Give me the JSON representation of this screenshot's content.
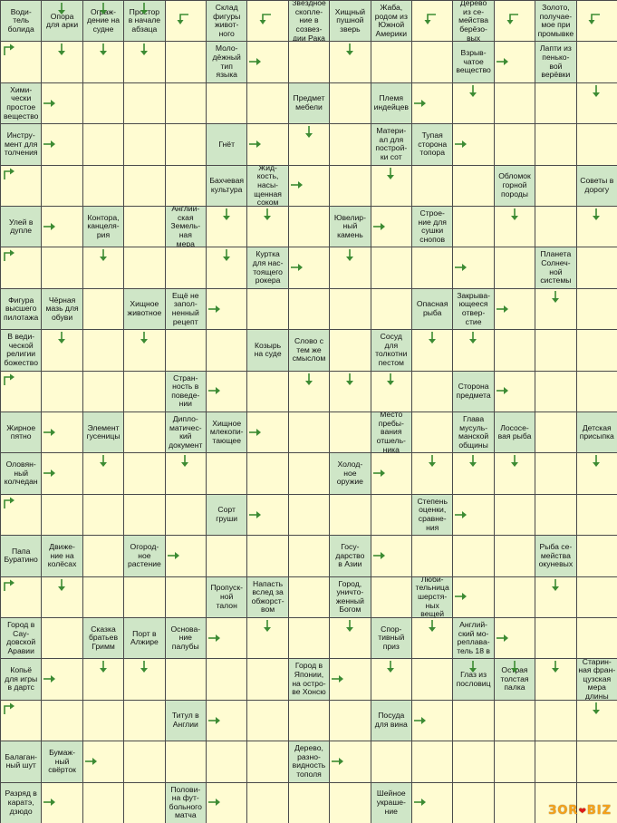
{
  "colors": {
    "clue_bg": "#cfe6c7",
    "blank_bg": "#fffcd2",
    "grid_line": "#4a4a4a",
    "arrow": "#3c8b33"
  },
  "grid": {
    "cols": 15,
    "rows": 20
  },
  "clues": [
    {
      "r": 0,
      "c": 0,
      "text": "Води-\nтель\nболида"
    },
    {
      "r": 0,
      "c": 1,
      "text": "Опора\nдля арки"
    },
    {
      "r": 0,
      "c": 2,
      "text": "Ограж-\nдение на\nсудне"
    },
    {
      "r": 0,
      "c": 3,
      "text": "Простор\nв начале\nабзаца"
    },
    {
      "r": 0,
      "c": 5,
      "text": "Склад\nфигуры\nживот-\nного"
    },
    {
      "r": 0,
      "c": 7,
      "text": "Звёздное\nскопле-\nние в\nсозвез-\nдии Рака"
    },
    {
      "r": 0,
      "c": 8,
      "text": "Хищный\nпушной\nзверь"
    },
    {
      "r": 0,
      "c": 9,
      "text": "Жаба,\nродом из\nЮжной\nАмерики"
    },
    {
      "r": 0,
      "c": 11,
      "text": "Дерево\nиз се-\nмейства\nберёзо-\nвых"
    },
    {
      "r": 0,
      "c": 13,
      "text": "Золото,\nполучае-\nмое при\nпромывке"
    },
    {
      "r": 1,
      "c": 5,
      "text": "Моло-\nдёжный\nтип\nязыка"
    },
    {
      "r": 1,
      "c": 11,
      "text": "Взрыв-\nчатое\nвещество"
    },
    {
      "r": 1,
      "c": 13,
      "text": "Лапти из\nпенько-\nвой\nверёвки"
    },
    {
      "r": 2,
      "c": 0,
      "text": "Хими-\nчески\nпростое\nвещество"
    },
    {
      "r": 2,
      "c": 7,
      "text": "Предмет\nмебели"
    },
    {
      "r": 2,
      "c": 9,
      "text": "Племя\nиндейцев"
    },
    {
      "r": 3,
      "c": 0,
      "text": "Инстру-\nмент для\nтолчения"
    },
    {
      "r": 3,
      "c": 5,
      "text": "Гнёт"
    },
    {
      "r": 3,
      "c": 9,
      "text": "Матери-\nал для\nпострой-\nки сот"
    },
    {
      "r": 3,
      "c": 10,
      "text": "Тупая\nсторона\nтопора"
    },
    {
      "r": 4,
      "c": 5,
      "text": "Бахчевая\nкультура"
    },
    {
      "r": 4,
      "c": 6,
      "text": "Жид-\nкость,\nнасы-\nщенная\nсоком"
    },
    {
      "r": 4,
      "c": 12,
      "text": "Обломок\nгорной\nпороды"
    },
    {
      "r": 4,
      "c": 14,
      "text": "Советы в\nдорогу"
    },
    {
      "r": 5,
      "c": 0,
      "text": "Улей в\nдупле"
    },
    {
      "r": 5,
      "c": 2,
      "text": "Контора,\nканцеля-\nрия"
    },
    {
      "r": 5,
      "c": 4,
      "text": "Англий-\nская\nЗемель-\nная\nмера"
    },
    {
      "r": 5,
      "c": 8,
      "text": "Ювелир-\nный\nкамень"
    },
    {
      "r": 5,
      "c": 10,
      "text": "Строе-\nние для\nсушки\nснопов"
    },
    {
      "r": 6,
      "c": 6,
      "text": "Куртка\nдля нас-\nтоящего\nрокера"
    },
    {
      "r": 6,
      "c": 13,
      "text": "Планета\nСолнеч-\nной\nсистемы"
    },
    {
      "r": 7,
      "c": 0,
      "text": "Фигура\nвысшего\nпилотажа"
    },
    {
      "r": 7,
      "c": 1,
      "text": "Чёрная\nмазь для\nобуви"
    },
    {
      "r": 7,
      "c": 3,
      "text": "Хищное\nживотное"
    },
    {
      "r": 7,
      "c": 4,
      "text": "Ещё не\nзапол-\nненный\nрецепт"
    },
    {
      "r": 7,
      "c": 10,
      "text": "Опасная\nрыба"
    },
    {
      "r": 7,
      "c": 11,
      "text": "Закрыва-\nющееся\nотвер-\nстие"
    },
    {
      "r": 8,
      "c": 0,
      "text": "В веди-\nческой\nрелигии\nбожество"
    },
    {
      "r": 8,
      "c": 6,
      "text": "Козырь\nна суде"
    },
    {
      "r": 8,
      "c": 7,
      "text": "Слово с\nтем же\nсмыслом"
    },
    {
      "r": 8,
      "c": 9,
      "text": "Сосуд\nдля\nтолкотни\nпестом"
    },
    {
      "r": 9,
      "c": 4,
      "text": "Стран-\nность в\nповеде-\nнии"
    },
    {
      "r": 9,
      "c": 11,
      "text": "Сторона\nпредмета"
    },
    {
      "r": 10,
      "c": 0,
      "text": "Жирное\nпятно"
    },
    {
      "r": 10,
      "c": 2,
      "text": "Элемент\nгусеницы"
    },
    {
      "r": 10,
      "c": 4,
      "text": "Дипло-\nматичес-\nкий\nдокумент"
    },
    {
      "r": 10,
      "c": 5,
      "text": "Хищное\nмлекопи-\nтающее"
    },
    {
      "r": 10,
      "c": 9,
      "text": "Место\nпребы-\nвания\nотшель-\nника"
    },
    {
      "r": 10,
      "c": 11,
      "text": "Глава\nмусуль-\nманской\nобщины"
    },
    {
      "r": 10,
      "c": 12,
      "text": "Лососе-\nвая рыба"
    },
    {
      "r": 10,
      "c": 14,
      "text": "Детская\nприсыпка"
    },
    {
      "r": 11,
      "c": 0,
      "text": "Оловян-\nный\nколчедан"
    },
    {
      "r": 11,
      "c": 8,
      "text": "Холод-\nное\nоружие"
    },
    {
      "r": 12,
      "c": 5,
      "text": "Сорт\nгруши"
    },
    {
      "r": 12,
      "c": 10,
      "text": "Степень\nоценки,\nсравне-\nния"
    },
    {
      "r": 13,
      "c": 0,
      "text": "Папа\nБуратино"
    },
    {
      "r": 13,
      "c": 1,
      "text": "Движе-\nние на\nколёсах"
    },
    {
      "r": 13,
      "c": 3,
      "text": "Огород-\nное\nрастение"
    },
    {
      "r": 13,
      "c": 8,
      "text": "Госу-\nдарство\nв Азии"
    },
    {
      "r": 13,
      "c": 13,
      "text": "Рыба се-\nмейства\nокуневых"
    },
    {
      "r": 14,
      "c": 5,
      "text": "Пропуск-\nной\nталон"
    },
    {
      "r": 14,
      "c": 6,
      "text": "Напасть\nвслед за\nобжорст-\nвом"
    },
    {
      "r": 14,
      "c": 8,
      "text": "Город,\nуничто-\nженный\nБогом"
    },
    {
      "r": 14,
      "c": 10,
      "text": "Люби-\nтельница\nшерстя-\nных\nвещей"
    },
    {
      "r": 15,
      "c": 0,
      "text": "Город в\nСау-\nдовской\nАравии"
    },
    {
      "r": 15,
      "c": 2,
      "text": "Сказка\nбратьев\nГримм"
    },
    {
      "r": 15,
      "c": 3,
      "text": "Порт в\nАлжире"
    },
    {
      "r": 15,
      "c": 4,
      "text": "Основа-\nние\nпалубы"
    },
    {
      "r": 15,
      "c": 9,
      "text": "Спор-\nтивный\nприз"
    },
    {
      "r": 15,
      "c": 11,
      "text": "Англий-\nский мо-\nреплава-\nтель 18 в"
    },
    {
      "r": 16,
      "c": 0,
      "text": "Копьё\nдля игры\nв дартс"
    },
    {
      "r": 16,
      "c": 7,
      "text": "Город в\nЯпонии,\nна остро-\nве Хонсю"
    },
    {
      "r": 16,
      "c": 11,
      "text": "Глаз из\nпословиц"
    },
    {
      "r": 16,
      "c": 12,
      "text": "Острая\nтолстая\nпалка"
    },
    {
      "r": 16,
      "c": 14,
      "text": "Старин-\nная фран-\nцузская\nмера\nдлины"
    },
    {
      "r": 17,
      "c": 4,
      "text": "Титул в\nАнглии"
    },
    {
      "r": 17,
      "c": 9,
      "text": "Посуда\nдля вина"
    },
    {
      "r": 18,
      "c": 0,
      "text": "Балаган-\nный шут"
    },
    {
      "r": 18,
      "c": 1,
      "text": "Бумаж-\nный\nсвёрток"
    },
    {
      "r": 18,
      "c": 7,
      "text": "Дерево,\nразно-\nвидность\nтополя"
    },
    {
      "r": 19,
      "c": 0,
      "text": "Разряд в\nкаратэ,\nдзюдо"
    },
    {
      "r": 19,
      "c": 4,
      "text": "Полови-\nна фут-\nбольного\nматча"
    },
    {
      "r": 19,
      "c": 9,
      "text": "Шейное\nукраше-\nние"
    }
  ],
  "arrows": [
    {
      "r": 0,
      "c": 1,
      "dir": "down"
    },
    {
      "r": 0,
      "c": 2,
      "dir": "down"
    },
    {
      "r": 0,
      "c": 3,
      "dir": "down"
    },
    {
      "r": 0,
      "c": 4,
      "dir": "left-down"
    },
    {
      "r": 0,
      "c": 6,
      "dir": "left-down"
    },
    {
      "r": 0,
      "c": 10,
      "dir": "left-down"
    },
    {
      "r": 0,
      "c": 12,
      "dir": "left-down"
    },
    {
      "r": 0,
      "c": 14,
      "dir": "left-down"
    },
    {
      "r": 1,
      "c": 0,
      "dir": "down-right"
    },
    {
      "r": 1,
      "c": 1,
      "dir": "down"
    },
    {
      "r": 1,
      "c": 2,
      "dir": "down"
    },
    {
      "r": 1,
      "c": 3,
      "dir": "down"
    },
    {
      "r": 1,
      "c": 6,
      "dir": "right"
    },
    {
      "r": 1,
      "c": 8,
      "dir": "down"
    },
    {
      "r": 1,
      "c": 12,
      "dir": "right"
    },
    {
      "r": 2,
      "c": 1,
      "dir": "right"
    },
    {
      "r": 2,
      "c": 10,
      "dir": "right"
    },
    {
      "r": 2,
      "c": 11,
      "dir": "down"
    },
    {
      "r": 2,
      "c": 14,
      "dir": "down"
    },
    {
      "r": 3,
      "c": 1,
      "dir": "right"
    },
    {
      "r": 3,
      "c": 6,
      "dir": "right"
    },
    {
      "r": 3,
      "c": 7,
      "dir": "down"
    },
    {
      "r": 3,
      "c": 11,
      "dir": "right"
    },
    {
      "r": 4,
      "c": 0,
      "dir": "down-right"
    },
    {
      "r": 4,
      "c": 9,
      "dir": "down"
    },
    {
      "r": 4,
      "c": 7,
      "dir": "right"
    },
    {
      "r": 5,
      "c": 1,
      "dir": "right"
    },
    {
      "r": 5,
      "c": 5,
      "dir": "down"
    },
    {
      "r": 5,
      "c": 6,
      "dir": "down"
    },
    {
      "r": 5,
      "c": 9,
      "dir": "right"
    },
    {
      "r": 5,
      "c": 12,
      "dir": "down"
    },
    {
      "r": 5,
      "c": 14,
      "dir": "down"
    },
    {
      "r": 6,
      "c": 0,
      "dir": "down-right"
    },
    {
      "r": 6,
      "c": 2,
      "dir": "down"
    },
    {
      "r": 6,
      "c": 5,
      "dir": "down"
    },
    {
      "r": 6,
      "c": 7,
      "dir": "right"
    },
    {
      "r": 6,
      "c": 8,
      "dir": "down"
    },
    {
      "r": 6,
      "c": 11,
      "dir": "right"
    },
    {
      "r": 7,
      "c": 13,
      "dir": "down"
    },
    {
      "r": 7,
      "c": 5,
      "dir": "right"
    },
    {
      "r": 7,
      "c": 12,
      "dir": "right"
    },
    {
      "r": 8,
      "c": 1,
      "dir": "down"
    },
    {
      "r": 8,
      "c": 3,
      "dir": "down"
    },
    {
      "r": 8,
      "c": 10,
      "dir": "down"
    },
    {
      "r": 8,
      "c": 11,
      "dir": "down"
    },
    {
      "r": 9,
      "c": 0,
      "dir": "down-right"
    },
    {
      "r": 9,
      "c": 5,
      "dir": "right"
    },
    {
      "r": 9,
      "c": 7,
      "dir": "down"
    },
    {
      "r": 9,
      "c": 8,
      "dir": "down"
    },
    {
      "r": 9,
      "c": 9,
      "dir": "down"
    },
    {
      "r": 9,
      "c": 12,
      "dir": "right"
    },
    {
      "r": 10,
      "c": 1,
      "dir": "right"
    },
    {
      "r": 10,
      "c": 6,
      "dir": "right"
    },
    {
      "r": 11,
      "c": 1,
      "dir": "right"
    },
    {
      "r": 11,
      "c": 2,
      "dir": "down"
    },
    {
      "r": 11,
      "c": 4,
      "dir": "down"
    },
    {
      "r": 11,
      "c": 9,
      "dir": "right"
    },
    {
      "r": 11,
      "c": 10,
      "dir": "down"
    },
    {
      "r": 11,
      "c": 11,
      "dir": "down"
    },
    {
      "r": 11,
      "c": 12,
      "dir": "down"
    },
    {
      "r": 11,
      "c": 14,
      "dir": "down"
    },
    {
      "r": 12,
      "c": 0,
      "dir": "down-right"
    },
    {
      "r": 12,
      "c": 6,
      "dir": "right"
    },
    {
      "r": 12,
      "c": 11,
      "dir": "right"
    },
    {
      "r": 13,
      "c": 4,
      "dir": "right"
    },
    {
      "r": 13,
      "c": 9,
      "dir": "right"
    },
    {
      "r": 14,
      "c": 1,
      "dir": "down"
    },
    {
      "r": 14,
      "c": 0,
      "dir": "down-right"
    },
    {
      "r": 14,
      "c": 11,
      "dir": "right"
    },
    {
      "r": 14,
      "c": 13,
      "dir": "down"
    },
    {
      "r": 15,
      "c": 5,
      "dir": "right"
    },
    {
      "r": 15,
      "c": 6,
      "dir": "down"
    },
    {
      "r": 15,
      "c": 8,
      "dir": "down"
    },
    {
      "r": 15,
      "c": 10,
      "dir": "down"
    },
    {
      "r": 15,
      "c": 12,
      "dir": "right"
    },
    {
      "r": 16,
      "c": 1,
      "dir": "right"
    },
    {
      "r": 16,
      "c": 2,
      "dir": "down"
    },
    {
      "r": 16,
      "c": 3,
      "dir": "down"
    },
    {
      "r": 16,
      "c": 8,
      "dir": "right"
    },
    {
      "r": 16,
      "c": 9,
      "dir": "down"
    },
    {
      "r": 16,
      "c": 11,
      "dir": "down"
    },
    {
      "r": 16,
      "c": 12,
      "dir": "down"
    },
    {
      "r": 16,
      "c": 13,
      "dir": "down"
    },
    {
      "r": 17,
      "c": 0,
      "dir": "down-right"
    },
    {
      "r": 17,
      "c": 5,
      "dir": "right"
    },
    {
      "r": 17,
      "c": 10,
      "dir": "right"
    },
    {
      "r": 17,
      "c": 14,
      "dir": "down"
    },
    {
      "r": 18,
      "c": 2,
      "dir": "right"
    },
    {
      "r": 18,
      "c": 8,
      "dir": "right"
    },
    {
      "r": 19,
      "c": 1,
      "dir": "right"
    },
    {
      "r": 19,
      "c": 5,
      "dir": "right"
    },
    {
      "r": 19,
      "c": 10,
      "dir": "right"
    }
  ],
  "logo": {
    "text": "ЗОR",
    "heart": "❤",
    "suffix": "BIZ"
  }
}
